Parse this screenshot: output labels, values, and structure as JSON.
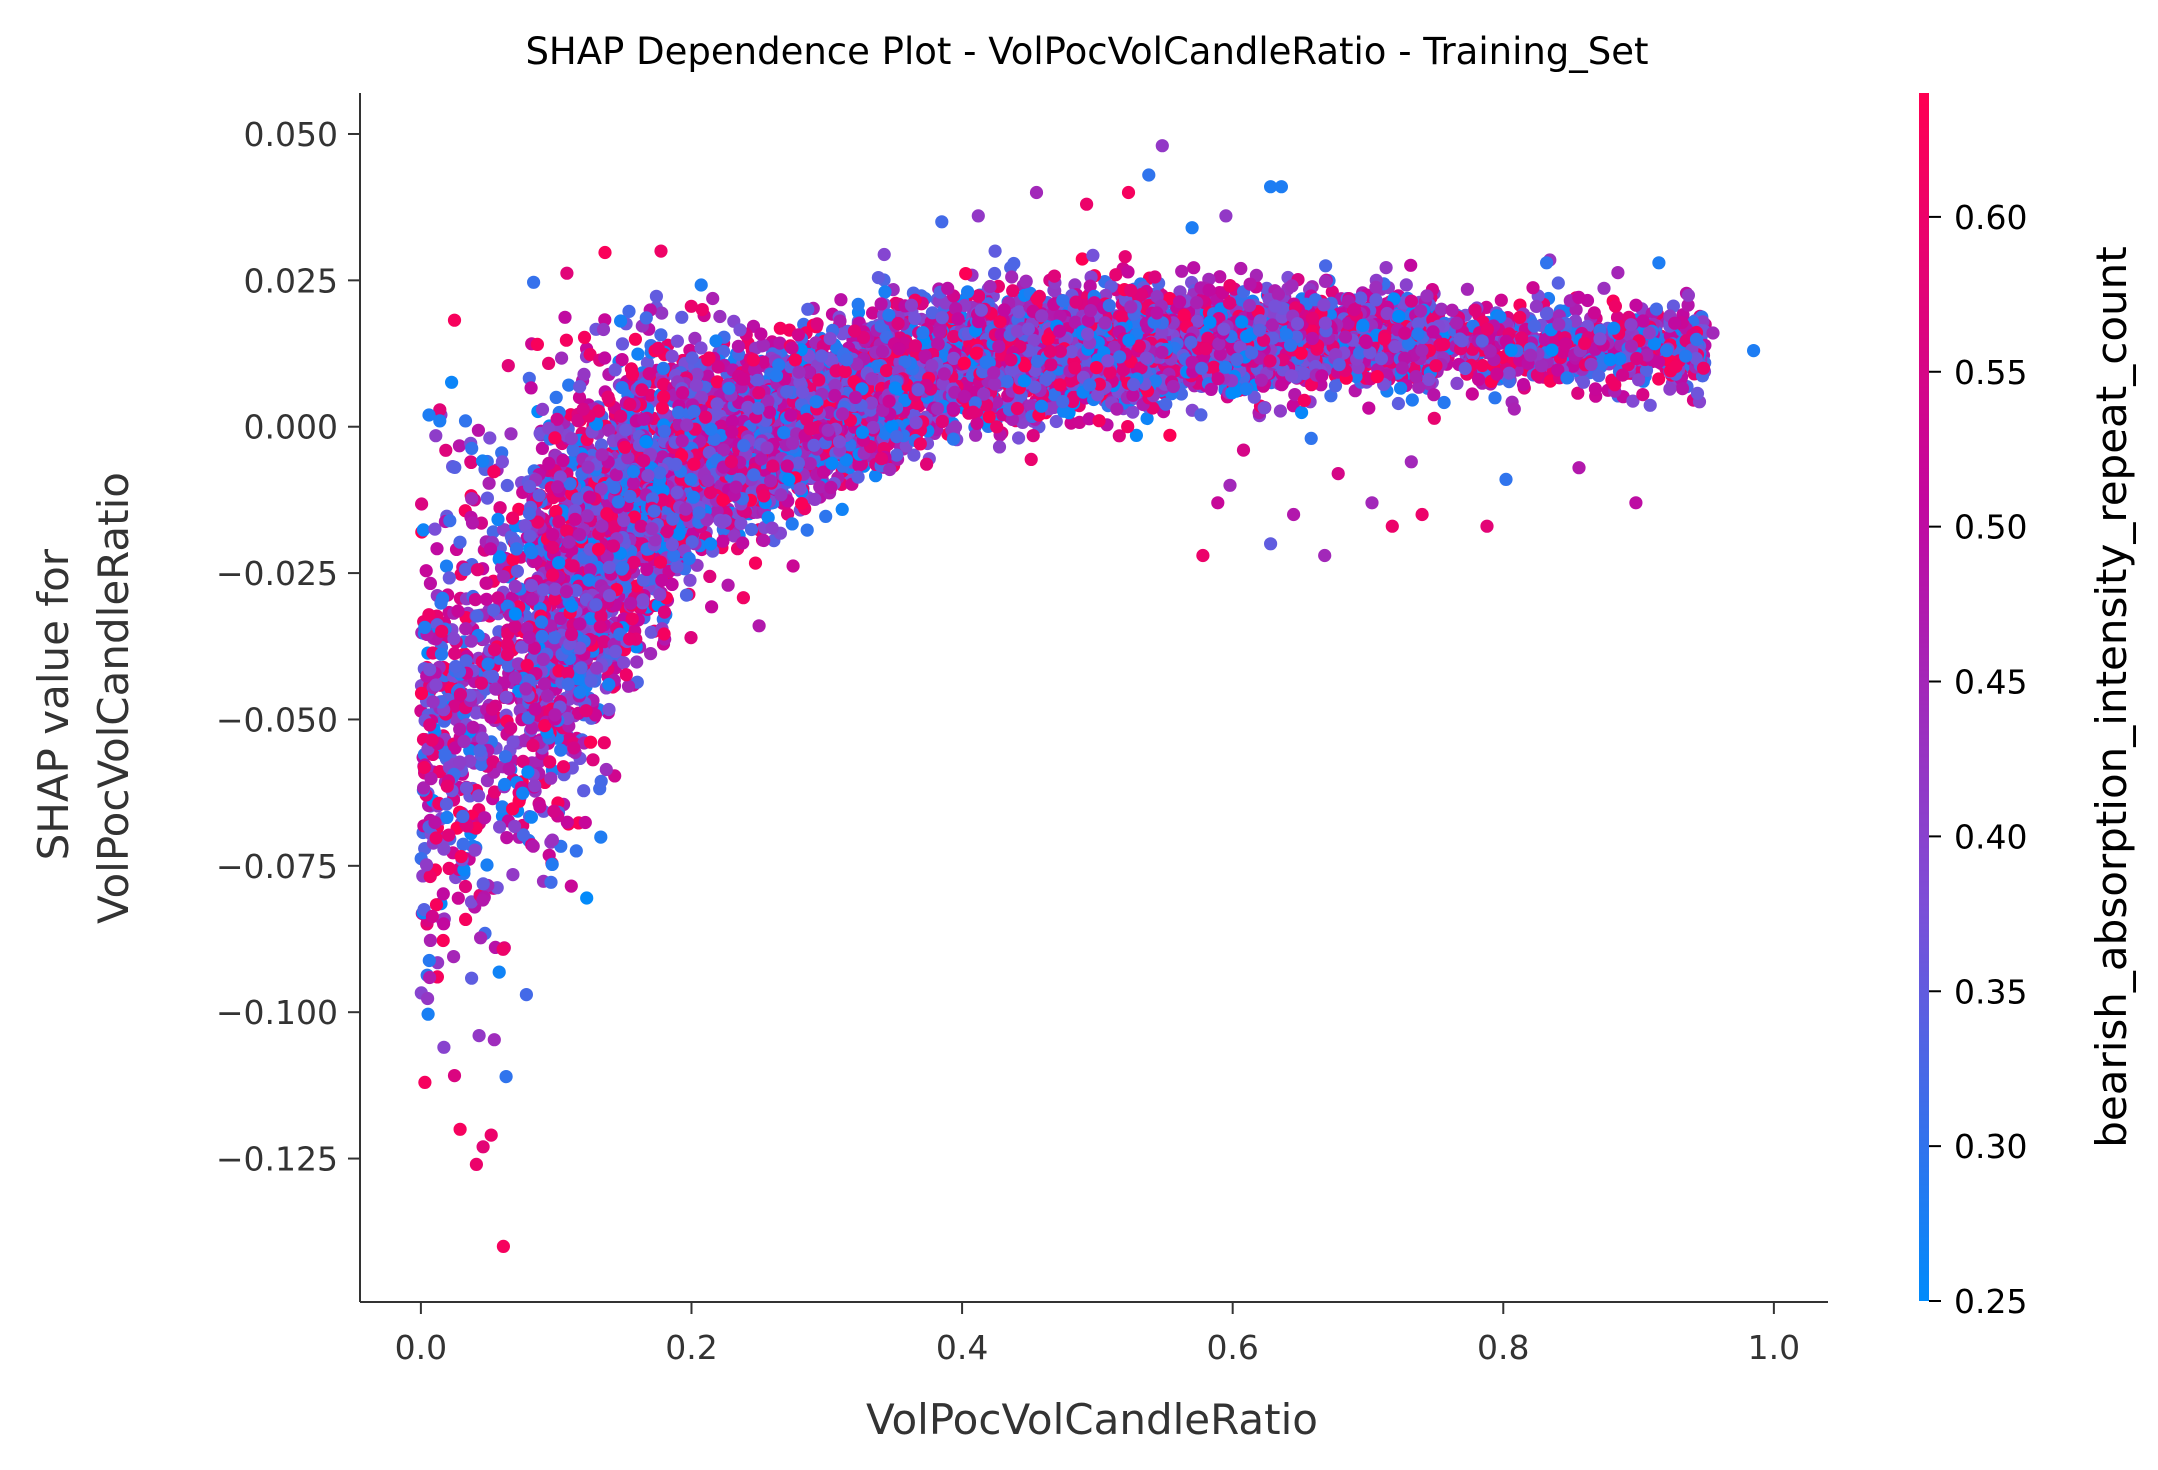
{
  "chart_data": {
    "type": "scatter",
    "title": "SHAP Dependence Plot - VolPocVolCandleRatio - Training_Set",
    "xlabel": "VolPocVolCandleRatio",
    "ylabel_lines": [
      "SHAP value for",
      "VolPocVolCandleRatio"
    ],
    "xlim": [
      -0.045,
      1.04
    ],
    "ylim": [
      -0.1495,
      0.057
    ],
    "x_ticks": [
      0.0,
      0.2,
      0.4,
      0.6,
      0.8,
      1.0
    ],
    "x_tick_labels": [
      "0.0",
      "0.2",
      "0.4",
      "0.6",
      "0.8",
      "1.0"
    ],
    "y_ticks": [
      0.05,
      0.025,
      0.0,
      -0.025,
      -0.05,
      -0.075,
      -0.1,
      -0.125
    ],
    "y_tick_labels": [
      "0.050",
      "0.025",
      "0.000",
      "−0.025",
      "−0.050",
      "−0.075",
      "−0.100",
      "−0.125"
    ],
    "grid": false,
    "colorbar": {
      "label": "bearish_absorption_intensity_repeat_count",
      "range": [
        0.25,
        0.64
      ],
      "ticks": [
        0.25,
        0.3,
        0.35,
        0.4,
        0.45,
        0.5,
        0.55,
        0.6
      ],
      "tick_labels": [
        "0.25",
        "0.30",
        "0.35",
        "0.40",
        "0.45",
        "0.50",
        "0.55",
        "0.60"
      ],
      "colors": [
        "#008bfb",
        "#7d4ed7",
        "#c2089f",
        "#ff0052"
      ]
    },
    "trend": [
      [
        0.0,
        -0.055
      ],
      [
        0.03,
        -0.05
      ],
      [
        0.06,
        -0.043
      ],
      [
        0.1,
        -0.033
      ],
      [
        0.13,
        -0.022
      ],
      [
        0.16,
        -0.013
      ],
      [
        0.2,
        -0.006
      ],
      [
        0.25,
        -0.002
      ],
      [
        0.3,
        0.003
      ],
      [
        0.35,
        0.008
      ],
      [
        0.4,
        0.012
      ],
      [
        0.5,
        0.013
      ],
      [
        0.6,
        0.015
      ],
      [
        0.7,
        0.015
      ],
      [
        0.8,
        0.014
      ],
      [
        0.9,
        0.014
      ],
      [
        1.0,
        0.013
      ]
    ],
    "spread": [
      [
        0.0,
        0.032
      ],
      [
        0.05,
        0.034
      ],
      [
        0.1,
        0.028
      ],
      [
        0.15,
        0.022
      ],
      [
        0.2,
        0.016
      ],
      [
        0.25,
        0.012
      ],
      [
        0.3,
        0.01
      ],
      [
        0.4,
        0.009
      ],
      [
        0.5,
        0.008
      ],
      [
        0.6,
        0.007
      ],
      [
        0.7,
        0.006
      ],
      [
        0.8,
        0.006
      ],
      [
        1.0,
        0.006
      ]
    ],
    "n_points": 9000,
    "points": [
      {
        "x": 0.061,
        "y": -0.14,
        "c": 0.62
      },
      {
        "x": 0.003,
        "y": -0.112,
        "c": 0.62
      },
      {
        "x": 0.041,
        "y": -0.126,
        "c": 0.6
      },
      {
        "x": 0.029,
        "y": -0.12,
        "c": 0.62
      },
      {
        "x": 0.052,
        "y": -0.121,
        "c": 0.6
      },
      {
        "x": 0.046,
        "y": -0.123,
        "c": 0.58
      },
      {
        "x": 0.063,
        "y": -0.111,
        "c": 0.3
      },
      {
        "x": 0.043,
        "y": -0.104,
        "c": 0.42
      },
      {
        "x": 0.017,
        "y": -0.106,
        "c": 0.4
      },
      {
        "x": 0.078,
        "y": -0.097,
        "c": 0.32
      },
      {
        "x": 0.548,
        "y": 0.048,
        "c": 0.42
      },
      {
        "x": 0.538,
        "y": 0.043,
        "c": 0.3
      },
      {
        "x": 0.628,
        "y": 0.041,
        "c": 0.28
      },
      {
        "x": 0.636,
        "y": 0.041,
        "c": 0.28
      },
      {
        "x": 0.455,
        "y": 0.04,
        "c": 0.45
      },
      {
        "x": 0.523,
        "y": 0.04,
        "c": 0.62
      },
      {
        "x": 0.492,
        "y": 0.038,
        "c": 0.6
      },
      {
        "x": 0.412,
        "y": 0.036,
        "c": 0.42
      },
      {
        "x": 0.385,
        "y": 0.035,
        "c": 0.32
      },
      {
        "x": 0.595,
        "y": 0.036,
        "c": 0.42
      },
      {
        "x": 0.57,
        "y": 0.034,
        "c": 0.28
      },
      {
        "x": 0.915,
        "y": 0.028,
        "c": 0.28
      },
      {
        "x": 0.832,
        "y": 0.028,
        "c": 0.3
      },
      {
        "x": 0.985,
        "y": 0.013,
        "c": 0.28
      },
      {
        "x": 0.955,
        "y": 0.016,
        "c": 0.45
      },
      {
        "x": 0.948,
        "y": 0.01,
        "c": 0.6
      },
      {
        "x": 0.898,
        "y": -0.013,
        "c": 0.5
      },
      {
        "x": 0.856,
        "y": -0.007,
        "c": 0.48
      },
      {
        "x": 0.788,
        "y": -0.017,
        "c": 0.58
      },
      {
        "x": 0.802,
        "y": -0.009,
        "c": 0.3
      },
      {
        "x": 0.732,
        "y": -0.006,
        "c": 0.45
      },
      {
        "x": 0.718,
        "y": -0.017,
        "c": 0.6
      },
      {
        "x": 0.668,
        "y": -0.022,
        "c": 0.45
      },
      {
        "x": 0.678,
        "y": -0.008,
        "c": 0.55
      },
      {
        "x": 0.628,
        "y": -0.02,
        "c": 0.35
      },
      {
        "x": 0.578,
        "y": -0.022,
        "c": 0.6
      },
      {
        "x": 0.608,
        "y": -0.004,
        "c": 0.55
      },
      {
        "x": 0.658,
        "y": -0.002,
        "c": 0.3
      },
      {
        "x": 0.598,
        "y": -0.01,
        "c": 0.45
      },
      {
        "x": 0.74,
        "y": -0.015,
        "c": 0.6
      },
      {
        "x": 0.703,
        "y": -0.013,
        "c": 0.45
      },
      {
        "x": 0.645,
        "y": -0.015,
        "c": 0.48
      },
      {
        "x": 0.589,
        "y": -0.013,
        "c": 0.52
      },
      {
        "x": 0.208,
        "y": 0.02,
        "c": 0.6
      },
      {
        "x": 0.25,
        "y": -0.034,
        "c": 0.48
      },
      {
        "x": 0.006,
        "y": 0.002,
        "c": 0.28
      },
      {
        "x": 0.014,
        "y": 0.001,
        "c": 0.28
      },
      {
        "x": 0.033,
        "y": 0.001,
        "c": 0.3
      },
      {
        "x": 0.1,
        "y": 0.005,
        "c": 0.3
      },
      {
        "x": 0.12,
        "y": 0.003,
        "c": 0.55
      }
    ]
  }
}
